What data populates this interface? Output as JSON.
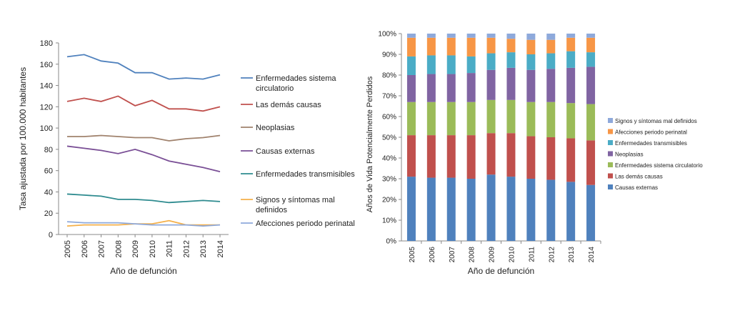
{
  "chart_data": [
    {
      "type": "line",
      "xlabel": "Año de defunción",
      "ylabel": "Tasa ajustada por 100.000 habitantes",
      "ylim": [
        0,
        180
      ],
      "yticks": [
        0,
        20,
        40,
        60,
        80,
        100,
        120,
        140,
        160,
        180
      ],
      "x": [
        "2005",
        "2006",
        "2007",
        "2008",
        "2009",
        "2010",
        "2011",
        "2012",
        "2013",
        "2014"
      ],
      "legend": "right",
      "grid": false,
      "series": [
        {
          "name": "Enfermedades sistema circulatorio",
          "color": "#4f81bd",
          "values": [
            167,
            169,
            163,
            161,
            152,
            152,
            146,
            147,
            146,
            150
          ]
        },
        {
          "name": "Las demás causas",
          "color": "#c0504d",
          "values": [
            125,
            128,
            125,
            130,
            121,
            126,
            118,
            118,
            116,
            120
          ]
        },
        {
          "name": "Neoplasias",
          "color": "#a0826d",
          "values": [
            92,
            92,
            93,
            92,
            91,
            91,
            88,
            90,
            91,
            93
          ]
        },
        {
          "name": "Causas externas",
          "color": "#7a4f96",
          "values": [
            83,
            81,
            79,
            76,
            80,
            75,
            69,
            66,
            63,
            59
          ]
        },
        {
          "name": "Enfermedades transmisibles",
          "color": "#2e8b8f",
          "values": [
            38,
            37,
            36,
            33,
            33,
            32,
            30,
            31,
            32,
            31
          ]
        },
        {
          "name": "Signos y síntomas mal definidos",
          "color": "#f4b04a",
          "values": [
            8,
            9,
            9,
            9,
            10,
            10,
            13,
            9,
            9,
            9
          ]
        },
        {
          "name": "Afecciones periodo perinatal",
          "color": "#8ea9db",
          "values": [
            12,
            11,
            11,
            11,
            10,
            9,
            9,
            9,
            8,
            9
          ]
        }
      ]
    },
    {
      "type": "bar",
      "stacked": true,
      "xlabel": "Año de defunción",
      "ylabel": "Años de Vida Potencialmente Perdidos",
      "ylim": [
        0,
        100
      ],
      "yticks": [
        "0%",
        "10%",
        "20%",
        "30%",
        "40%",
        "50%",
        "60%",
        "70%",
        "80%",
        "90%",
        "100%"
      ],
      "categories": [
        "2005",
        "2006",
        "2007",
        "2008",
        "2009",
        "2010",
        "2011",
        "2012",
        "2013",
        "2014"
      ],
      "legend": "right",
      "series": [
        {
          "name": "Causas externas",
          "color": "#4f81bd",
          "values": [
            31,
            30.5,
            30.5,
            30,
            32,
            31,
            30,
            29.5,
            28.5,
            27
          ]
        },
        {
          "name": "Las demás causas",
          "color": "#c0504d",
          "values": [
            20,
            20.5,
            20.5,
            21,
            20,
            21,
            20.5,
            20.5,
            21,
            21.5
          ]
        },
        {
          "name": "Enfermedades sistema circulatorio",
          "color": "#9bbb59",
          "values": [
            16,
            16,
            16,
            16,
            16,
            16,
            16.5,
            17,
            17,
            17.5
          ]
        },
        {
          "name": "Neoplasias",
          "color": "#8064a2",
          "values": [
            13,
            13.5,
            13.5,
            14,
            14.5,
            15.5,
            15.5,
            16,
            17,
            18
          ]
        },
        {
          "name": "Enfermedades transmisibles",
          "color": "#4bacc6",
          "values": [
            9,
            9,
            9,
            8,
            8,
            7.5,
            7.5,
            7.5,
            8,
            7
          ]
        },
        {
          "name": "Afecciones periodo perinatal",
          "color": "#f79646",
          "values": [
            9,
            8.5,
            8.5,
            9,
            7.5,
            6.5,
            7,
            6.5,
            6.5,
            7
          ]
        },
        {
          "name": "Signos y síntomas mal definidos",
          "color": "#8ea9db",
          "values": [
            2,
            2,
            2,
            2,
            2,
            2.5,
            3,
            3,
            2,
            2
          ]
        }
      ],
      "legend_order": [
        "Signos y síntomas mal definidos",
        "Afecciones periodo perinatal",
        "Enfermedades transmisibles",
        "Neoplasias",
        "Enfermedades sistema circulatorio",
        "Las demás causas",
        "Causas externas"
      ]
    }
  ]
}
